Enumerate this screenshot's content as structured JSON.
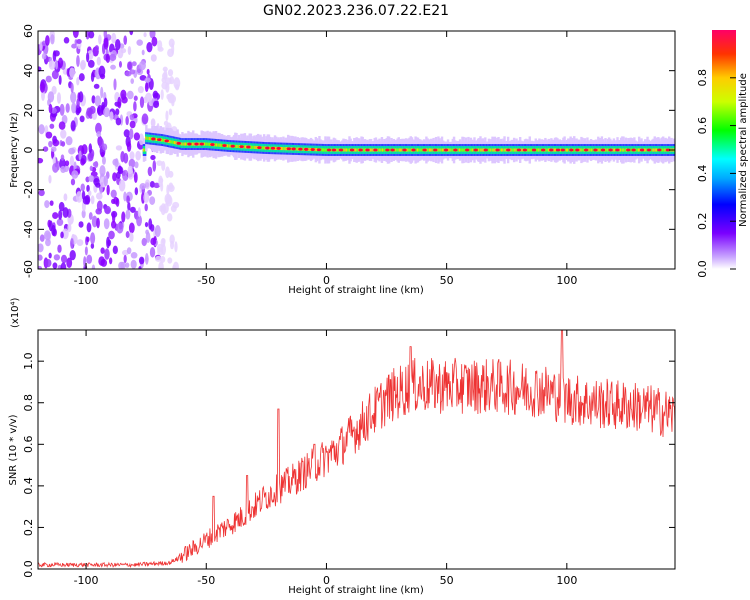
{
  "title": "GN02.2023.236.07.22.E21",
  "chart_data": [
    {
      "type": "heatmap",
      "xlabel": "Height of straight line (km)",
      "ylabel": "Frequency (Hz)",
      "xlim": [
        -120,
        145
      ],
      "ylim": [
        -60,
        60
      ],
      "x_ticks": [
        "-100",
        "-50",
        "0",
        "50",
        "100"
      ],
      "y_ticks": [
        "-60",
        "-40",
        "-20",
        "0",
        "20",
        "40",
        "60"
      ],
      "colorbar": {
        "label": "Normalized spectral amplitude",
        "range": [
          0,
          1
        ],
        "ticks": [
          "0.0",
          "0.2",
          "0.4",
          "0.6",
          "0.8"
        ]
      },
      "signal_band": {
        "center_freq": [
          [
            -75,
            6
          ],
          [
            -68,
            5
          ],
          [
            -60,
            3
          ],
          [
            -50,
            3
          ],
          [
            -40,
            2
          ],
          [
            -25,
            1
          ],
          [
            0,
            0
          ],
          [
            145,
            0
          ]
        ],
        "description_free": null
      },
      "noise_region_x": [
        -120,
        -65
      ],
      "colors": {
        "high": "#ff0033",
        "mid": "#00ff00",
        "low": "#8800ff",
        "faint": "#e9d4ff"
      }
    },
    {
      "type": "line",
      "xlabel": "Height of straight line (km)",
      "ylabel": "SNR (10 * v/v)",
      "y_multiplier": "(x10⁴)",
      "xlim": [
        -120,
        145
      ],
      "ylim": [
        0,
        1.15
      ],
      "x_ticks": [
        "-100",
        "-50",
        "0",
        "50",
        "100"
      ],
      "y_ticks": [
        "0.0",
        "0.2",
        "0.4",
        "0.6",
        "0.8",
        "1.0"
      ],
      "series": [
        {
          "color": "#ee3333",
          "envelope": [
            [
              -120,
              0.02
            ],
            [
              -80,
              0.02
            ],
            [
              -65,
              0.03
            ],
            [
              -55,
              0.1
            ],
            [
              -45,
              0.18
            ],
            [
              -35,
              0.25
            ],
            [
              -25,
              0.35
            ],
            [
              -15,
              0.42
            ],
            [
              -5,
              0.5
            ],
            [
              5,
              0.58
            ],
            [
              15,
              0.7
            ],
            [
              25,
              0.82
            ],
            [
              35,
              0.88
            ],
            [
              50,
              0.88
            ],
            [
              70,
              0.88
            ],
            [
              90,
              0.86
            ],
            [
              100,
              0.82
            ],
            [
              110,
              0.8
            ],
            [
              130,
              0.78
            ],
            [
              145,
              0.74
            ]
          ],
          "spikes": [
            [
              -47,
              0.35
            ],
            [
              -33,
              0.45
            ],
            [
              -20,
              0.77
            ],
            [
              -5,
              0.6
            ],
            [
              35,
              1.07
            ],
            [
              98,
              1.15
            ]
          ]
        }
      ]
    }
  ]
}
